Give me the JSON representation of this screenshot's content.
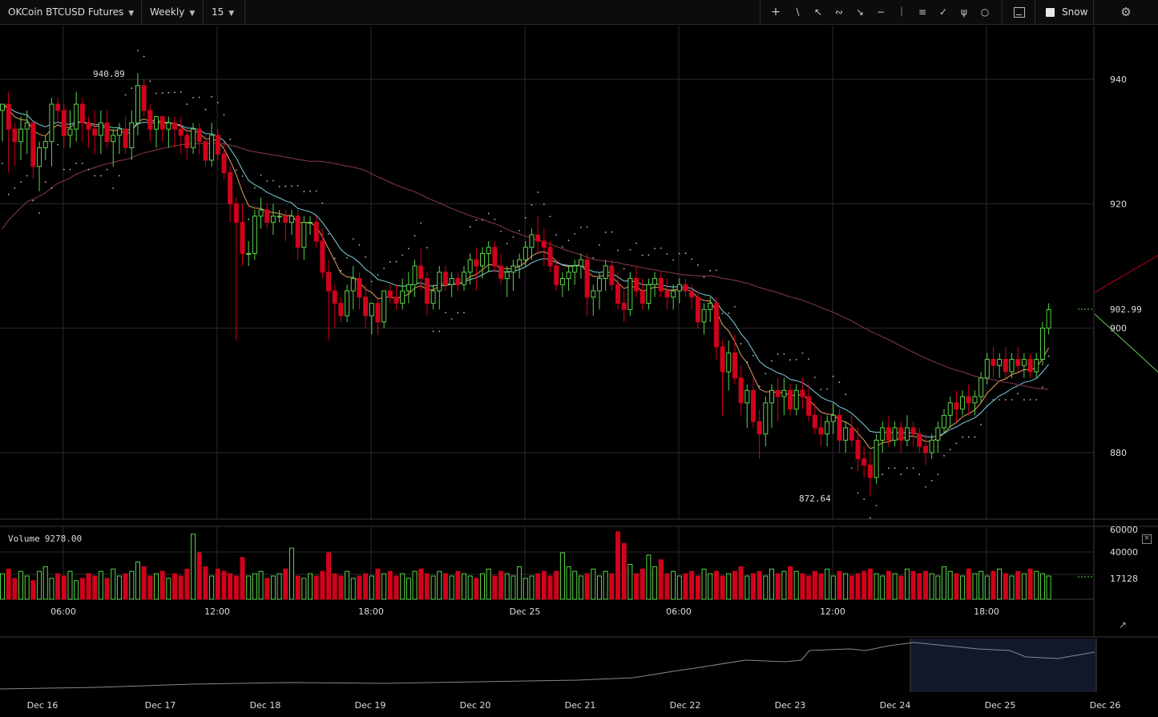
{
  "toolbar": {
    "symbol": "OKCoin BTCUSD Futures",
    "period": "Weekly",
    "interval": "15",
    "snow_label": "Snow"
  },
  "price_labels": {
    "high": "940.89",
    "low": "872.64",
    "last": "902.99"
  },
  "price_axis": [
    "940",
    "920",
    "900",
    "880"
  ],
  "volume": {
    "label": "Volume",
    "value": "9278.00",
    "axis": [
      "60000",
      "40000",
      "17128"
    ]
  },
  "time_axis": [
    "06:00",
    "12:00",
    "18:00",
    "Dec 25",
    "06:00",
    "12:00",
    "18:00"
  ],
  "navigator_axis": [
    "Dec 16",
    "Dec 17",
    "Dec 18",
    "Dec 19",
    "Dec 20",
    "Dec 21",
    "Dec 22",
    "Dec 23",
    "Dec 24",
    "Dec 25",
    "Dec 26"
  ],
  "colors": {
    "up": "#5bd44a",
    "down": "#d0021b",
    "ema_fast": "#e8a060",
    "ema_slow": "#7fd0e0",
    "ma_long": "#8a3a4a",
    "sar": "#bbbbbb"
  },
  "chart_data": {
    "type": "candlestick",
    "ylim": [
      873,
      952
    ],
    "candles": [
      [
        935,
        936,
        930,
        936
      ],
      [
        936,
        938,
        925,
        932
      ],
      [
        932,
        933,
        926,
        930
      ],
      [
        930,
        934,
        927,
        932
      ],
      [
        932,
        935,
        928,
        933
      ],
      [
        933,
        933,
        924,
        926
      ],
      [
        926,
        930,
        922,
        929
      ],
      [
        929,
        931,
        927,
        930
      ],
      [
        930,
        937,
        926,
        936
      ],
      [
        936,
        937,
        933,
        935
      ],
      [
        935,
        936,
        929,
        931
      ],
      [
        931,
        935,
        929,
        932
      ],
      [
        932,
        938,
        930,
        936
      ],
      [
        936,
        937,
        930,
        933
      ],
      [
        933,
        934,
        929,
        932
      ],
      [
        932,
        935,
        928,
        931
      ],
      [
        931,
        935,
        928,
        933
      ],
      [
        933,
        935,
        929,
        930
      ],
      [
        930,
        932,
        926,
        931
      ],
      [
        931,
        933,
        928,
        932
      ],
      [
        932,
        934,
        928,
        929
      ],
      [
        929,
        935,
        927,
        933
      ],
      [
        933,
        941,
        931,
        939
      ],
      [
        939,
        940,
        934,
        935
      ],
      [
        935,
        936,
        930,
        932
      ],
      [
        932,
        934,
        929,
        934
      ],
      [
        934,
        934,
        930,
        932
      ],
      [
        932,
        934,
        929,
        933
      ],
      [
        933,
        934,
        929,
        932
      ],
      [
        932,
        934,
        928,
        931
      ],
      [
        931,
        932,
        927,
        929
      ],
      [
        929,
        933,
        928,
        932
      ],
      [
        932,
        933,
        928,
        930
      ],
      [
        930,
        931,
        926,
        927
      ],
      [
        927,
        933,
        926,
        931
      ],
      [
        931,
        932,
        927,
        928
      ],
      [
        928,
        930,
        924,
        925
      ],
      [
        925,
        926,
        917,
        920
      ],
      [
        920,
        921,
        898,
        917
      ],
      [
        917,
        920,
        910,
        912
      ],
      [
        912,
        914,
        910,
        912
      ],
      [
        912,
        919,
        911,
        918
      ],
      [
        918,
        921,
        916,
        919
      ],
      [
        919,
        920,
        916,
        917
      ],
      [
        917,
        920,
        915,
        918
      ],
      [
        918,
        919,
        917,
        918
      ],
      [
        918,
        919,
        914,
        917
      ],
      [
        917,
        919,
        915,
        918
      ],
      [
        918,
        919,
        911,
        913
      ],
      [
        913,
        918,
        911,
        917
      ],
      [
        917,
        918,
        915,
        917
      ],
      [
        917,
        918,
        913,
        914
      ],
      [
        914,
        916,
        908,
        909
      ],
      [
        909,
        911,
        898,
        906
      ],
      [
        906,
        907,
        900,
        904
      ],
      [
        904,
        905,
        901,
        902
      ],
      [
        902,
        907,
        901,
        906
      ],
      [
        906,
        910,
        903,
        908
      ],
      [
        908,
        909,
        903,
        905
      ],
      [
        905,
        907,
        900,
        902
      ],
      [
        902,
        904,
        899,
        904
      ],
      [
        904,
        905,
        899,
        901
      ],
      [
        901,
        906,
        900,
        906
      ],
      [
        906,
        907,
        904,
        905
      ],
      [
        905,
        907,
        903,
        904
      ],
      [
        904,
        908,
        903,
        906
      ],
      [
        906,
        909,
        904,
        907
      ],
      [
        907,
        911,
        905,
        910
      ],
      [
        910,
        913,
        906,
        908
      ],
      [
        908,
        909,
        902,
        904
      ],
      [
        904,
        907,
        903,
        906
      ],
      [
        906,
        910,
        903,
        909
      ],
      [
        909,
        910,
        906,
        907
      ],
      [
        907,
        909,
        905,
        908
      ],
      [
        908,
        909,
        906,
        907
      ],
      [
        907,
        910,
        906,
        909
      ],
      [
        909,
        912,
        907,
        911
      ],
      [
        911,
        913,
        906,
        910
      ],
      [
        910,
        913,
        908,
        912
      ],
      [
        912,
        914,
        909,
        913
      ],
      [
        913,
        914,
        909,
        910
      ],
      [
        910,
        912,
        907,
        908
      ],
      [
        908,
        910,
        905,
        909
      ],
      [
        909,
        911,
        906,
        910
      ],
      [
        910,
        912,
        908,
        911
      ],
      [
        911,
        914,
        910,
        913
      ],
      [
        913,
        916,
        911,
        915
      ],
      [
        915,
        918,
        912,
        914
      ],
      [
        914,
        916,
        910,
        913
      ],
      [
        913,
        914,
        909,
        910
      ],
      [
        910,
        911,
        906,
        907
      ],
      [
        907,
        909,
        905,
        908
      ],
      [
        908,
        910,
        906,
        909
      ],
      [
        909,
        911,
        907,
        910
      ],
      [
        910,
        912,
        908,
        911
      ],
      [
        911,
        912,
        902,
        905
      ],
      [
        905,
        907,
        902,
        906
      ],
      [
        906,
        909,
        903,
        908
      ],
      [
        908,
        911,
        906,
        910
      ],
      [
        910,
        911,
        906,
        907
      ],
      [
        907,
        909,
        903,
        904
      ],
      [
        904,
        906,
        901,
        903
      ],
      [
        903,
        909,
        902,
        908
      ],
      [
        908,
        910,
        905,
        906
      ],
      [
        906,
        908,
        903,
        904
      ],
      [
        904,
        908,
        903,
        907
      ],
      [
        907,
        909,
        905,
        908
      ],
      [
        908,
        909,
        905,
        906
      ],
      [
        906,
        908,
        903,
        905
      ],
      [
        905,
        907,
        903,
        906
      ],
      [
        906,
        908,
        904,
        907
      ],
      [
        907,
        908,
        905,
        906
      ],
      [
        906,
        907,
        903,
        905
      ],
      [
        905,
        906,
        900,
        901
      ],
      [
        901,
        904,
        899,
        903
      ],
      [
        903,
        905,
        901,
        904
      ],
      [
        904,
        905,
        895,
        897
      ],
      [
        897,
        898,
        886,
        893
      ],
      [
        893,
        898,
        890,
        896
      ],
      [
        896,
        899,
        891,
        892
      ],
      [
        892,
        894,
        886,
        888
      ],
      [
        888,
        891,
        884,
        890
      ],
      [
        890,
        892,
        884,
        885
      ],
      [
        885,
        887,
        879,
        883
      ],
      [
        883,
        889,
        881,
        888
      ],
      [
        888,
        891,
        884,
        890
      ],
      [
        890,
        892,
        885,
        889
      ],
      [
        889,
        892,
        886,
        890
      ],
      [
        890,
        891,
        886,
        887
      ],
      [
        887,
        891,
        886,
        890
      ],
      [
        890,
        892,
        887,
        889
      ],
      [
        889,
        891,
        885,
        886
      ],
      [
        886,
        888,
        883,
        884
      ],
      [
        884,
        886,
        881,
        883
      ],
      [
        883,
        886,
        881,
        885
      ],
      [
        885,
        888,
        883,
        886
      ],
      [
        886,
        887,
        880,
        882
      ],
      [
        882,
        885,
        880,
        884
      ],
      [
        884,
        886,
        881,
        882
      ],
      [
        882,
        884,
        877,
        879
      ],
      [
        879,
        881,
        876,
        878
      ],
      [
        878,
        880,
        873,
        876
      ],
      [
        876,
        883,
        875,
        882
      ],
      [
        882,
        885,
        880,
        884
      ],
      [
        884,
        886,
        881,
        882
      ],
      [
        882,
        885,
        881,
        884
      ],
      [
        884,
        885,
        880,
        882
      ],
      [
        882,
        886,
        881,
        884
      ],
      [
        884,
        885,
        881,
        883
      ],
      [
        883,
        884,
        880,
        881
      ],
      [
        881,
        883,
        878,
        880
      ],
      [
        880,
        883,
        879,
        882
      ],
      [
        882,
        885,
        880,
        884
      ],
      [
        884,
        887,
        883,
        886
      ],
      [
        886,
        889,
        884,
        888
      ],
      [
        888,
        890,
        885,
        887
      ],
      [
        887,
        890,
        886,
        889
      ],
      [
        889,
        891,
        886,
        888
      ],
      [
        888,
        890,
        886,
        889
      ],
      [
        889,
        893,
        888,
        892
      ],
      [
        892,
        896,
        891,
        895
      ],
      [
        895,
        897,
        892,
        894
      ],
      [
        894,
        896,
        892,
        895
      ],
      [
        895,
        897,
        892,
        893
      ],
      [
        893,
        896,
        892,
        895
      ],
      [
        895,
        897,
        893,
        894
      ],
      [
        894,
        896,
        892,
        895
      ],
      [
        895,
        896,
        892,
        893
      ],
      [
        893,
        896,
        892,
        895
      ],
      [
        895,
        901,
        894,
        900
      ],
      [
        900,
        904,
        899,
        903
      ]
    ],
    "volume": [
      11,
      13,
      9,
      12,
      10,
      8,
      12,
      14,
      9,
      11,
      10,
      12,
      8,
      9,
      11,
      10,
      12,
      9,
      13,
      10,
      11,
      12,
      16,
      14,
      10,
      11,
      12,
      9,
      11,
      10,
      13,
      28,
      20,
      14,
      10,
      13,
      12,
      11,
      10,
      18,
      10,
      11,
      12,
      9,
      10,
      11,
      13,
      22,
      10,
      9,
      11,
      10,
      12,
      20,
      11,
      10,
      12,
      9,
      10,
      11,
      10,
      13,
      11,
      12,
      10,
      11,
      9,
      12,
      13,
      11,
      10,
      12,
      11,
      10,
      12,
      11,
      10,
      9,
      11,
      13,
      10,
      12,
      11,
      10,
      14,
      9,
      10,
      11,
      12,
      10,
      12,
      20,
      14,
      12,
      10,
      11,
      13,
      10,
      12,
      11,
      29,
      24,
      15,
      11,
      13,
      19,
      14,
      17,
      11,
      12,
      10,
      11,
      12,
      10,
      13,
      11,
      12,
      10,
      11,
      12,
      14,
      10,
      11,
      12,
      10,
      13,
      11,
      12,
      14,
      12,
      11,
      10,
      12,
      11,
      13,
      10,
      12,
      11,
      10,
      11,
      12,
      13,
      11,
      10,
      12,
      11,
      10,
      13,
      12,
      11,
      12,
      11,
      10,
      14,
      12,
      11,
      10,
      13,
      11,
      12,
      10,
      12,
      13,
      11,
      10,
      12,
      11,
      13,
      12,
      11,
      10
    ],
    "x_ticks": [
      "06:00",
      "12:00",
      "18:00",
      "Dec 25",
      "06:00",
      "12:00",
      "18:00"
    ],
    "y_ticks": [
      940,
      920,
      900,
      880
    ]
  }
}
